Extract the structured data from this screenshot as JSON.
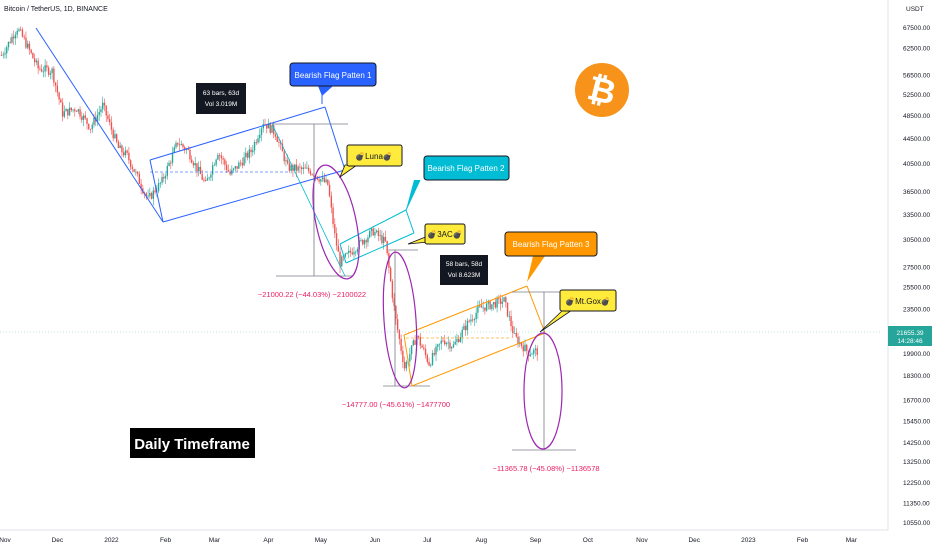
{
  "header": {
    "symbol": "Bitcoin / TetherUS, 1D, BINANCE",
    "currency": "USDT"
  },
  "price_tag": {
    "price": "21655.39",
    "countdown": "14:28:46"
  },
  "colors": {
    "up": "#26a69a",
    "down": "#ef5350",
    "blue_channel": "#2962ff",
    "cyan_channel": "#00bcd4",
    "orange_channel": "#ff9800",
    "measure_text": "#e91e63",
    "ellipse": "#9c27b0",
    "bitcoin_orange": "#f7931a"
  },
  "annotations": {
    "flag1": "Bearish Flag Patten 1",
    "flag2": "Bearish Flag Patten 2",
    "flag3": "Bearish Flag Patten 3",
    "luna": "Luna",
    "threeac": "3AC",
    "mtgox": "Mt.Gox",
    "info1_line1": "63 bars, 63d",
    "info1_line2": "Vol 3.019M",
    "info2_line1": "58 bars, 58d",
    "info2_line2": "Vol 8.623M",
    "drop1": "−21000.22 (−44.03%) −2100022",
    "drop2": "−14777.00 (−45.61%) −1477700",
    "drop3": "−11365.78 (−45.08%) −1136578",
    "timeframe": "Daily Timeframe",
    "bitcoin_symbol": "₿"
  },
  "chart_data": {
    "type": "candlestick",
    "title": "Bitcoin / TetherUS, 1D, BINANCE",
    "y_scale": "log",
    "ylim": [
      10000,
      76000
    ],
    "y_ticks": [
      "67500.00",
      "62500.00",
      "56500.00",
      "52500.00",
      "48500.00",
      "44500.00",
      "40500.00",
      "36500.00",
      "33500.00",
      "30500.00",
      "27500.00",
      "25500.00",
      "23500.00",
      "19900.00",
      "18300.00",
      "16700.00",
      "15450.00",
      "14250.00",
      "13250.00",
      "12250.00",
      "11350.00",
      "10550.00"
    ],
    "x_ticks": [
      "Nov",
      "Dec",
      "2022",
      "Feb",
      "Mar",
      "Apr",
      "May",
      "Jun",
      "Jul",
      "Aug",
      "Sep",
      "Oct",
      "Nov",
      "Dec",
      "2023",
      "Feb",
      "Mar"
    ],
    "price_path": [
      [
        "2021-10-30",
        61000
      ],
      [
        "2021-11-02",
        63000
      ],
      [
        "2021-11-08",
        67500
      ],
      [
        "2021-11-12",
        64500
      ],
      [
        "2021-11-20",
        58000
      ],
      [
        "2021-11-28",
        57500
      ],
      [
        "2021-12-04",
        49000
      ],
      [
        "2021-12-12",
        50000
      ],
      [
        "2021-12-20",
        46500
      ],
      [
        "2021-12-27",
        50500
      ],
      [
        "2022-01-05",
        43000
      ],
      [
        "2022-01-10",
        41800
      ],
      [
        "2022-01-22",
        35500
      ],
      [
        "2022-01-30",
        38000
      ],
      [
        "2022-02-08",
        44000
      ],
      [
        "2022-02-14",
        42500
      ],
      [
        "2022-02-24",
        37500
      ],
      [
        "2022-03-03",
        42500
      ],
      [
        "2022-03-10",
        39000
      ],
      [
        "2022-03-22",
        42500
      ],
      [
        "2022-03-29",
        47500
      ],
      [
        "2022-04-05",
        45500
      ],
      [
        "2022-04-12",
        40000
      ],
      [
        "2022-04-25",
        39500
      ],
      [
        "2022-05-05",
        37500
      ],
      [
        "2022-05-09",
        31000
      ],
      [
        "2022-05-12",
        28000
      ],
      [
        "2022-05-20",
        29500
      ],
      [
        "2022-05-31",
        31500
      ],
      [
        "2022-06-07",
        30200
      ],
      [
        "2022-06-13",
        22500
      ],
      [
        "2022-06-18",
        18900
      ],
      [
        "2022-06-25",
        21300
      ],
      [
        "2022-07-02",
        19200
      ],
      [
        "2022-07-10",
        21000
      ],
      [
        "2022-07-16",
        20500
      ],
      [
        "2022-07-25",
        22500
      ],
      [
        "2022-07-31",
        23600
      ],
      [
        "2022-08-14",
        24300
      ],
      [
        "2022-08-20",
        21200
      ],
      [
        "2022-08-28",
        20000
      ],
      [
        "2022-09-02",
        20100
      ]
    ],
    "measurements": [
      {
        "label": "−21000.22 (−44.03%) −2100022",
        "from": 47700,
        "to": 26700
      },
      {
        "label": "−14777.00 (−45.61%) −1477700",
        "from": 32400,
        "to": 17600
      },
      {
        "label": "−11365.78 (−45.08%) −1136578",
        "from": 25200,
        "to": 13800
      }
    ],
    "patterns": [
      "Bearish Flag Patten 1",
      "Bearish Flag Patten 2",
      "Bearish Flag Patten 3"
    ],
    "grid": false,
    "last_price": 21655.39
  }
}
